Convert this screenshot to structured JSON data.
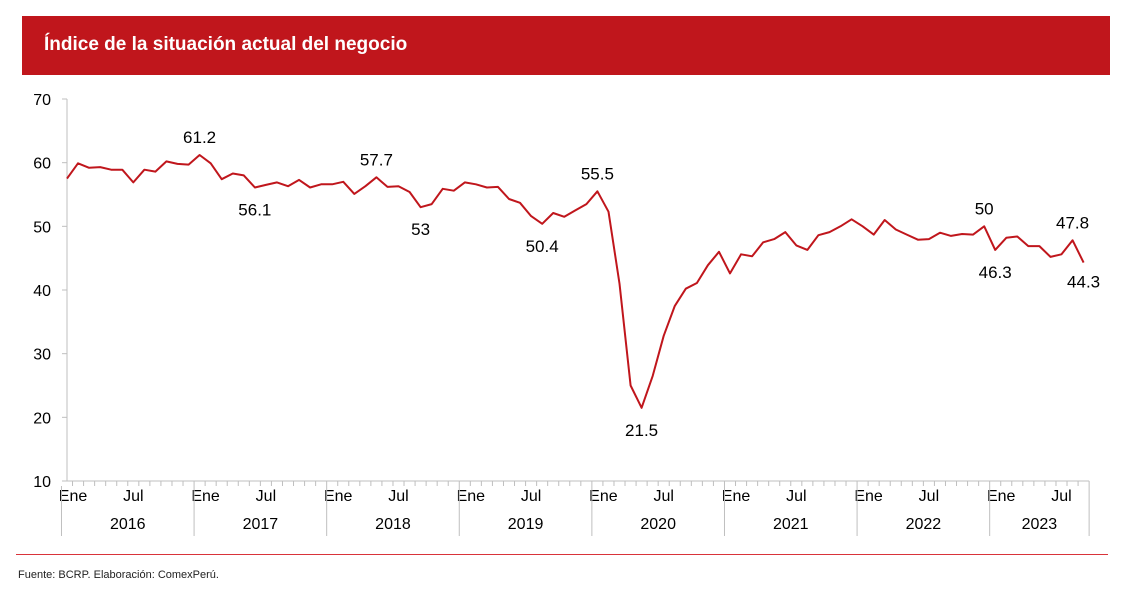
{
  "chart_title": "Índice de la situación actual del negocio",
  "source": "Fuente: BCRP. Elaboración: ComexPerú.",
  "colors": {
    "banner": "#c0161c",
    "line": "#c0161c",
    "text": "#000000",
    "axis": "#bfbfbf"
  },
  "chart_data": {
    "type": "line",
    "title": "Índice de la situación actual del negocio",
    "xlabel": "",
    "ylabel": "",
    "ylim": [
      10,
      70
    ],
    "yticks": [
      10,
      20,
      30,
      40,
      50,
      60,
      70
    ],
    "grid": false,
    "start": "2016-01",
    "month_tick_labels": [
      "Ene",
      "Jul"
    ],
    "years": [
      "2016",
      "2017",
      "2018",
      "2019",
      "2020",
      "2021",
      "2022",
      "2023"
    ],
    "series": [
      {
        "name": "Índice de la situación actual del negocio",
        "values": [
          57.5,
          59.9,
          59.2,
          59.3,
          58.9,
          58.9,
          56.9,
          58.9,
          58.6,
          60.2,
          59.8,
          59.7,
          61.2,
          59.9,
          57.4,
          58.3,
          58.0,
          56.1,
          56.5,
          56.9,
          56.3,
          57.3,
          56.1,
          56.6,
          56.6,
          57.0,
          55.1,
          56.3,
          57.7,
          56.2,
          56.3,
          55.4,
          53.0,
          53.5,
          55.9,
          55.6,
          56.9,
          56.6,
          56.1,
          56.2,
          54.3,
          53.7,
          51.6,
          50.4,
          52.1,
          51.5,
          52.5,
          53.5,
          55.5,
          52.3,
          41.0,
          25.0,
          21.5,
          26.5,
          32.8,
          37.5,
          40.2,
          41.1,
          43.9,
          46.0,
          42.6,
          45.6,
          45.3,
          47.5,
          48.0,
          49.1,
          47.0,
          46.3,
          48.6,
          49.1,
          50.0,
          51.1,
          50.0,
          48.7,
          51.0,
          49.5,
          48.7,
          47.9,
          48.0,
          49.0,
          48.5,
          48.8,
          48.7,
          50.0,
          46.3,
          48.2,
          48.4,
          46.9,
          46.9,
          45.2,
          45.6,
          47.8,
          44.3
        ]
      }
    ],
    "annotations": [
      {
        "index": 12,
        "label": "61.2",
        "position": "above"
      },
      {
        "index": 17,
        "label": "56.1",
        "position": "below"
      },
      {
        "index": 28,
        "label": "57.7",
        "position": "above"
      },
      {
        "index": 32,
        "label": "53",
        "position": "below"
      },
      {
        "index": 43,
        "label": "50.4",
        "position": "below"
      },
      {
        "index": 48,
        "label": "55.5",
        "position": "above"
      },
      {
        "index": 52,
        "label": "21.5",
        "position": "below"
      },
      {
        "index": 83,
        "label": "50",
        "position": "above"
      },
      {
        "index": 84,
        "label": "46.3",
        "position": "below"
      },
      {
        "index": 91,
        "label": "47.8",
        "position": "above"
      },
      {
        "index": 92,
        "label": "44.3",
        "position": "below-right"
      }
    ]
  }
}
